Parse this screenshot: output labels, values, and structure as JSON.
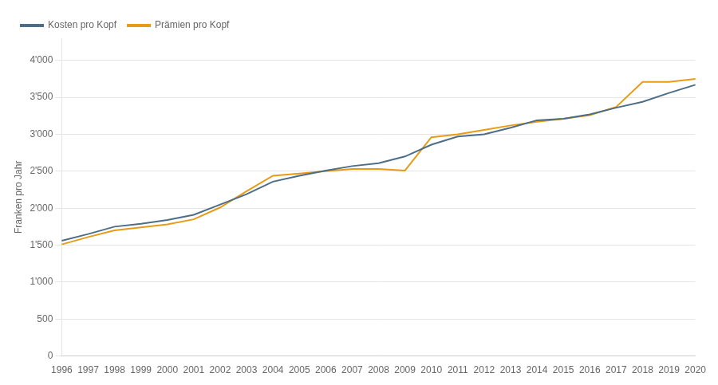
{
  "chart_data": {
    "type": "line",
    "categories": [
      "1996",
      "1997",
      "1998",
      "1999",
      "2000",
      "2001",
      "2002",
      "2003",
      "2004",
      "2005",
      "2006",
      "2007",
      "2008",
      "2009",
      "2010",
      "2011",
      "2012",
      "2013",
      "2014",
      "2015",
      "2016",
      "2017",
      "2018",
      "2019",
      "2020"
    ],
    "series": [
      {
        "name": "Kosten pro Kopf",
        "color": "#4d6d87",
        "values": [
          1560,
          1650,
          1750,
          1790,
          1840,
          1910,
          2050,
          2190,
          2360,
          2440,
          2510,
          2570,
          2610,
          2700,
          2860,
          2970,
          3000,
          3090,
          3190,
          3210,
          3270,
          3360,
          3440,
          3560,
          3670
        ]
      },
      {
        "name": "Prämien pro Kopf",
        "color": "#e89b14",
        "values": [
          1510,
          1610,
          1700,
          1740,
          1780,
          1850,
          2010,
          2230,
          2440,
          2470,
          2500,
          2530,
          2530,
          2510,
          2960,
          3000,
          3060,
          3120,
          3170,
          3210,
          3260,
          3370,
          3710,
          3710,
          3750
        ]
      }
    ],
    "y_label": "Franken pro Jahr",
    "ylim": [
      0,
      4300
    ],
    "yticks": [
      0,
      500,
      {
        "value": 1000,
        "label": "1'000"
      },
      {
        "value": 1500,
        "label": "1'500"
      },
      {
        "value": 2000,
        "label": "2'000"
      },
      {
        "value": 2500,
        "label": "2'500"
      },
      {
        "value": 3000,
        "label": "3'000"
      },
      {
        "value": 3500,
        "label": "3'500"
      },
      {
        "value": 4000,
        "label": "4'000"
      }
    ],
    "grid": "y",
    "legend": "top"
  }
}
